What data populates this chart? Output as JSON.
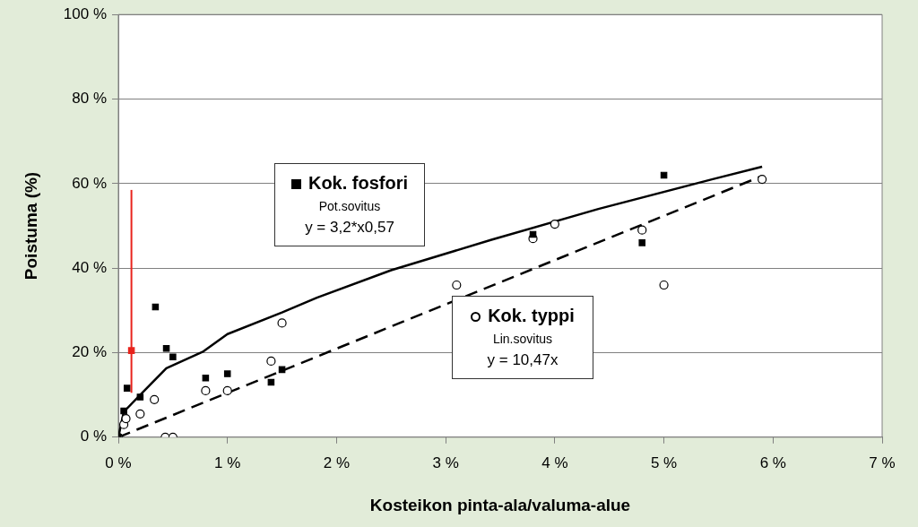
{
  "chart_data": {
    "type": "scatter",
    "xlabel": "Kosteikon pinta-ala/valuma-alue",
    "ylabel": "Poistuma (%)",
    "xlim": [
      0,
      7
    ],
    "xticks": [
      {
        "value": 0,
        "label": "0 %"
      },
      {
        "value": 1,
        "label": "1 %"
      },
      {
        "value": 2,
        "label": "2 %"
      },
      {
        "value": 3,
        "label": "3 %"
      },
      {
        "value": 4,
        "label": "4 %"
      },
      {
        "value": 5,
        "label": "5 %"
      },
      {
        "value": 6,
        "label": "6 %"
      },
      {
        "value": 7,
        "label": "7 %"
      }
    ],
    "ylim": [
      0,
      100
    ],
    "yticks": [
      {
        "value": 0,
        "label": "0 %"
      },
      {
        "value": 20,
        "label": "20 %"
      },
      {
        "value": 40,
        "label": "40 %"
      },
      {
        "value": 60,
        "label": "60 %"
      },
      {
        "value": 80,
        "label": "80 %"
      },
      {
        "value": 100,
        "label": "100 %"
      }
    ],
    "grid": "y",
    "legend": "center",
    "annotations": [
      "Pot.sovitus",
      "y = 3,2*x0,57",
      "Lin.sovitus",
      "y = 10,47x"
    ],
    "series": [
      {
        "name": "Kok. fosfori",
        "type": "scatter",
        "marker": "square",
        "color": "#000000",
        "x": [
          0,
          0.05,
          0.08,
          0.2,
          0.34,
          0.44,
          0.5,
          0.8,
          1.0,
          1.4,
          1.5,
          3.8,
          4.8,
          5.0
        ],
        "values": [
          0,
          6.2,
          11.6,
          9.5,
          30.8,
          21,
          19,
          14,
          15,
          13,
          16,
          48,
          46,
          62
        ]
      },
      {
        "name": "Kok. typpi",
        "type": "scatter",
        "marker": "circle",
        "color": "#000000",
        "x": [
          0,
          0.05,
          0.07,
          0.2,
          0.33,
          0.43,
          0.5,
          0.8,
          1.0,
          1.4,
          1.5,
          3.1,
          3.8,
          4.0,
          4.8,
          5.0,
          5.9
        ],
        "values": [
          0,
          3,
          4.4,
          5.5,
          8.9,
          0,
          0,
          11,
          11,
          18,
          27,
          36,
          47,
          50.4,
          49,
          36,
          61
        ]
      },
      {
        "type": "scatter",
        "marker": "square",
        "color": "#e8231c",
        "x": [
          0.12
        ],
        "values": [
          20.5
        ],
        "errors": [
          [
            10.5,
            58.5
          ]
        ]
      },
      {
        "type": "line",
        "marker": "none",
        "line_style": "solid",
        "color": "#000000",
        "x": [
          0,
          0.05,
          0.2,
          0.44,
          0.78,
          1,
          1.5,
          1.82,
          2.5,
          3.42,
          4.4,
          5.44,
          5.9
        ],
        "values": [
          0,
          6,
          10,
          16.3,
          20.3,
          24.4,
          29.5,
          33,
          39.5,
          46.7,
          54,
          61,
          64
        ]
      },
      {
        "type": "line",
        "marker": "none",
        "line_style": "dashed",
        "color": "#000000",
        "x": [
          0,
          5.9
        ],
        "values": [
          0,
          61.8
        ]
      }
    ]
  }
}
